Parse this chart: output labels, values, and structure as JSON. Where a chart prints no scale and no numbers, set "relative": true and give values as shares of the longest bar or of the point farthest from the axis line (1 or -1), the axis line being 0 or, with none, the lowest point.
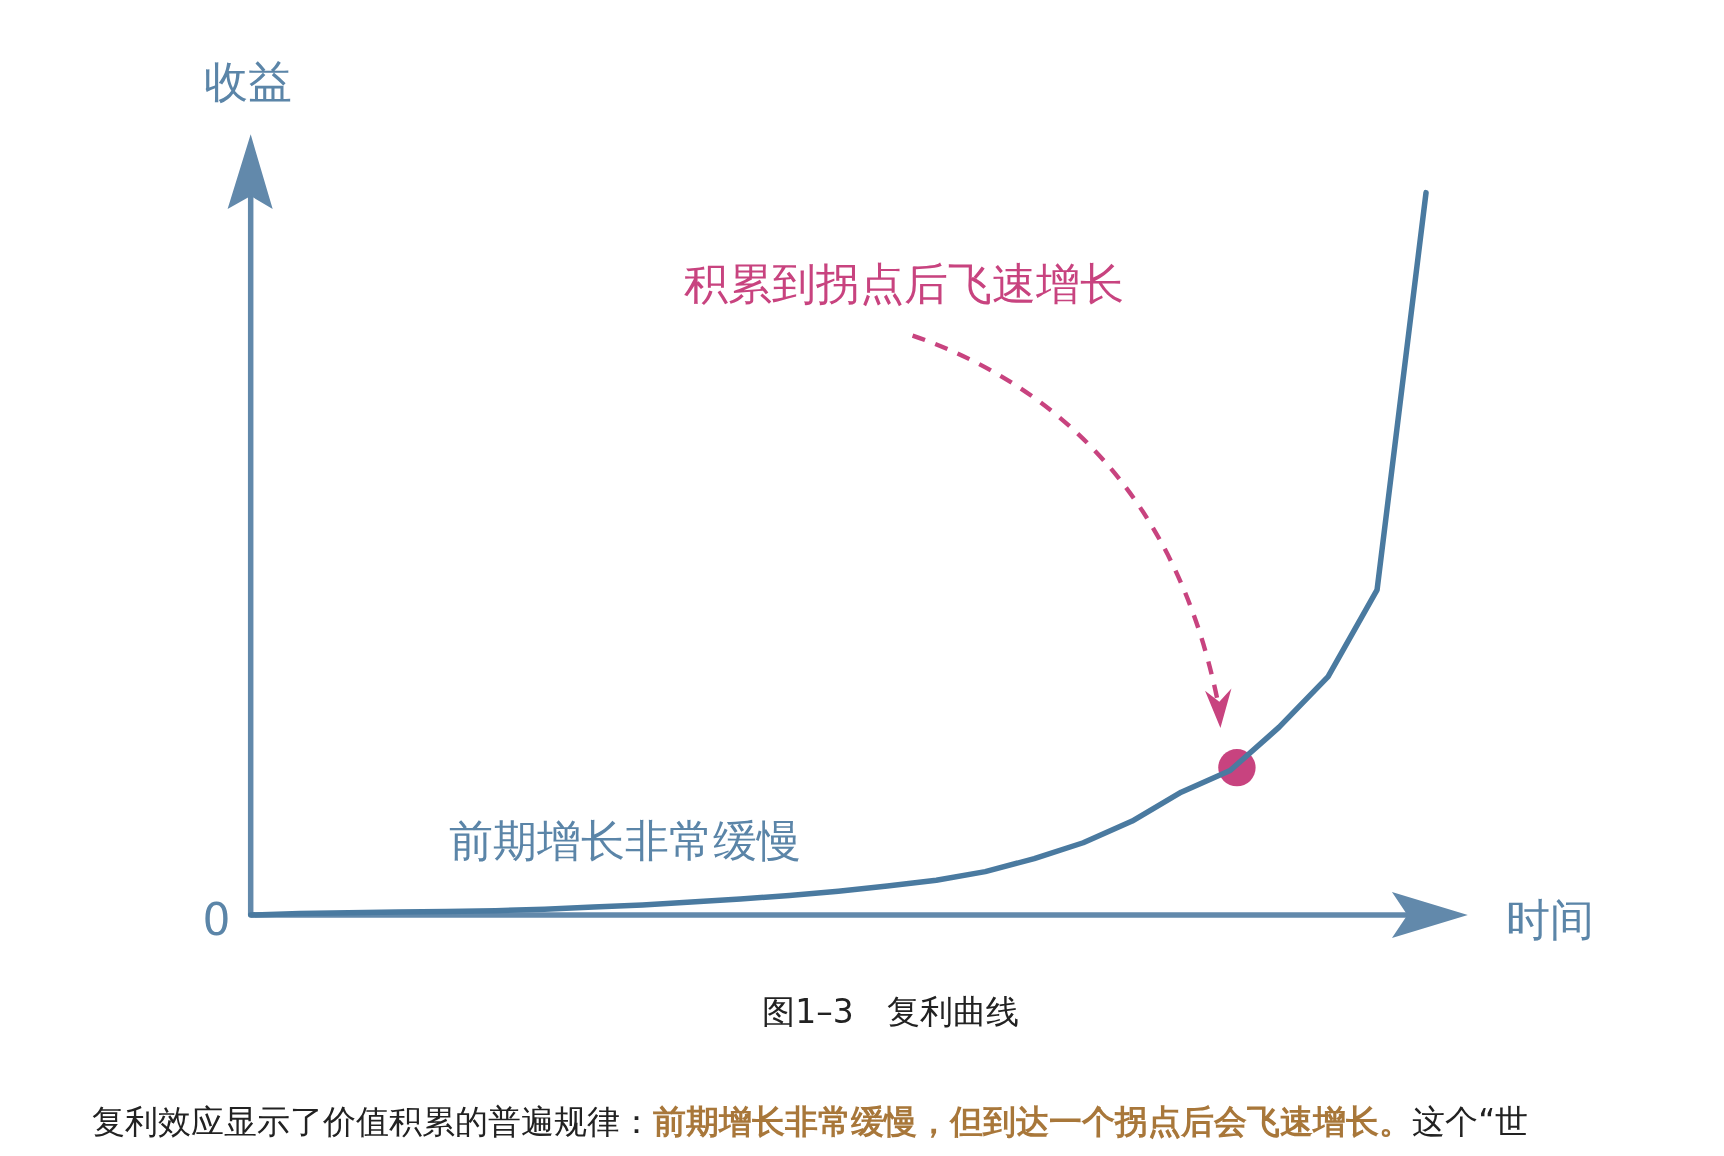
{
  "chart_data": {
    "type": "line",
    "relative": true,
    "xlabel": "时间",
    "ylabel": "收益",
    "categories": [
      null,
      null,
      null,
      null,
      null,
      null,
      null,
      null,
      null,
      null,
      null,
      null,
      null,
      null,
      null,
      null,
      null,
      null,
      null,
      null,
      null,
      null,
      null,
      null,
      null
    ],
    "series": [
      {
        "color": "#4a7aa0",
        "values": [
          0,
          0.002,
          0.003,
          0.004,
          0.005,
          0.006,
          0.008,
          0.011,
          0.014,
          0.018,
          0.022,
          0.027,
          0.033,
          0.04,
          0.048,
          0.06,
          0.078,
          0.1,
          0.13,
          0.17,
          0.2,
          0.26,
          0.33,
          0.45,
          1.0
        ]
      }
    ],
    "annotations": [
      "0",
      "积累到拐点后飞速增长",
      "前期增长非常缓慢",
      "图1–3　复利曲线",
      "复利效应显示了价值积累的普遍规律：**前期增长非常缓慢，但到达一个拐点后会飞速增长。**这个“世"
    ]
  }
}
